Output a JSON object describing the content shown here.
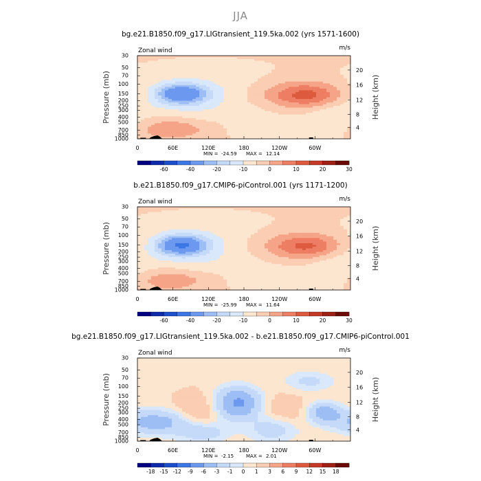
{
  "figure": {
    "title": "JJA"
  },
  "chart_data": [
    {
      "type": "heatmap",
      "title": "bg.e21.B1850.f09_g17.LIGtransient_119.5ka.002 (yrs 1571-1600)",
      "variable_label": "Zonal wind",
      "units_label": "m/s",
      "ylabel": "Pressure (mb)",
      "ylabel_right": "Height (km)",
      "x_ticks": [
        "0",
        "60E",
        "120E",
        "180",
        "120W",
        "60W"
      ],
      "y_ticks": [
        "30",
        "50",
        "70",
        "100",
        "150",
        "200",
        "250",
        "300",
        "400",
        "500",
        "700",
        "850",
        "1000"
      ],
      "height_ticks": [
        "20",
        "16",
        "12",
        "8",
        "4"
      ],
      "stats": {
        "min_label": "MIN =",
        "min": "-24.59",
        "max_label": "MAX =",
        "max": "12.14"
      },
      "colorbar_labels": [
        "-60",
        "-40",
        "-20",
        "-10",
        "0",
        "10",
        "20",
        "30"
      ],
      "colors": [
        "#000080",
        "#0d2aa8",
        "#1d4fcc",
        "#3d77e6",
        "#6c99ef",
        "#9dbdf5",
        "#c5daf8",
        "#d9e8fa",
        "#fde6d0",
        "#fbcdb2",
        "#f6a488",
        "#ee7e63",
        "#de5a3f",
        "#c43a26",
        "#9e1f14",
        "#6b0a06"
      ],
      "features": {
        "jet_sh": {
          "lon": 75,
          "level": 150,
          "peak": -24.59
        },
        "jet_nh": {
          "lon": 290,
          "level": 160,
          "peak": 12.14
        }
      }
    },
    {
      "type": "heatmap",
      "title": "b.e21.B1850.f09_g17.CMIP6-piControl.001 (yrs 1171-1200)",
      "variable_label": "Zonal wind",
      "units_label": "m/s",
      "ylabel": "Pressure (mb)",
      "ylabel_right": "Height (km)",
      "x_ticks": [
        "0",
        "60E",
        "120E",
        "180",
        "120W",
        "60W"
      ],
      "y_ticks": [
        "30",
        "50",
        "70",
        "100",
        "150",
        "200",
        "250",
        "300",
        "400",
        "500",
        "700",
        "850",
        "1000"
      ],
      "height_ticks": [
        "20",
        "16",
        "12",
        "8",
        "4"
      ],
      "stats": {
        "min_label": "MIN =",
        "min": "-25.99",
        "max_label": "MAX =",
        "max": "11.64"
      },
      "colorbar_labels": [
        "-60",
        "-40",
        "-20",
        "-10",
        "0",
        "10",
        "20",
        "30"
      ],
      "colors": [
        "#000080",
        "#0d2aa8",
        "#1d4fcc",
        "#3d77e6",
        "#6c99ef",
        "#9dbdf5",
        "#c5daf8",
        "#d9e8fa",
        "#fde6d0",
        "#fbcdb2",
        "#f6a488",
        "#ee7e63",
        "#de5a3f",
        "#c43a26",
        "#9e1f14",
        "#6b0a06"
      ],
      "features": {
        "jet_sh": {
          "lon": 75,
          "level": 150,
          "peak": -25.99
        },
        "jet_nh": {
          "lon": 290,
          "level": 160,
          "peak": 11.64
        }
      }
    },
    {
      "type": "heatmap",
      "title": "bg.e21.B1850.f09_g17.LIGtransient_119.5ka.002 - b.e21.B1850.f09_g17.CMIP6-piControl.001",
      "variable_label": "Zonal wind",
      "units_label": "m/s",
      "ylabel": "Pressure (mb)",
      "ylabel_right": "Height (km)",
      "x_ticks": [
        "0",
        "60E",
        "120E",
        "180",
        "120W",
        "60W"
      ],
      "y_ticks": [
        "30",
        "50",
        "70",
        "100",
        "150",
        "200",
        "250",
        "300",
        "400",
        "500",
        "700",
        "850",
        "1000"
      ],
      "height_ticks": [
        "20",
        "16",
        "12",
        "8",
        "4"
      ],
      "stats": {
        "min_label": "MIN =",
        "min": "-2.15",
        "max_label": "MAX =",
        "max": "2.01"
      },
      "colorbar_labels": [
        "-18",
        "-15",
        "-12",
        "-9",
        "-6",
        "-3",
        "-1",
        "0",
        "1",
        "3",
        "6",
        "9",
        "12",
        "15",
        "18"
      ],
      "colors": [
        "#000080",
        "#0d2aa8",
        "#1d4fcc",
        "#3d77e6",
        "#6c99ef",
        "#9dbdf5",
        "#c5daf8",
        "#d9e8fa",
        "#fde6d0",
        "#fbcdb2",
        "#f6a488",
        "#ee7e63",
        "#de5a3f",
        "#c43a26",
        "#9e1f14",
        "#6b0a06"
      ],
      "features": {
        "anomaly_min": {
          "lon": 170,
          "level": 200,
          "peak": -2.15
        },
        "anomaly_max": {
          "lon": 100,
          "level": 300,
          "peak": 2.01
        }
      }
    }
  ]
}
